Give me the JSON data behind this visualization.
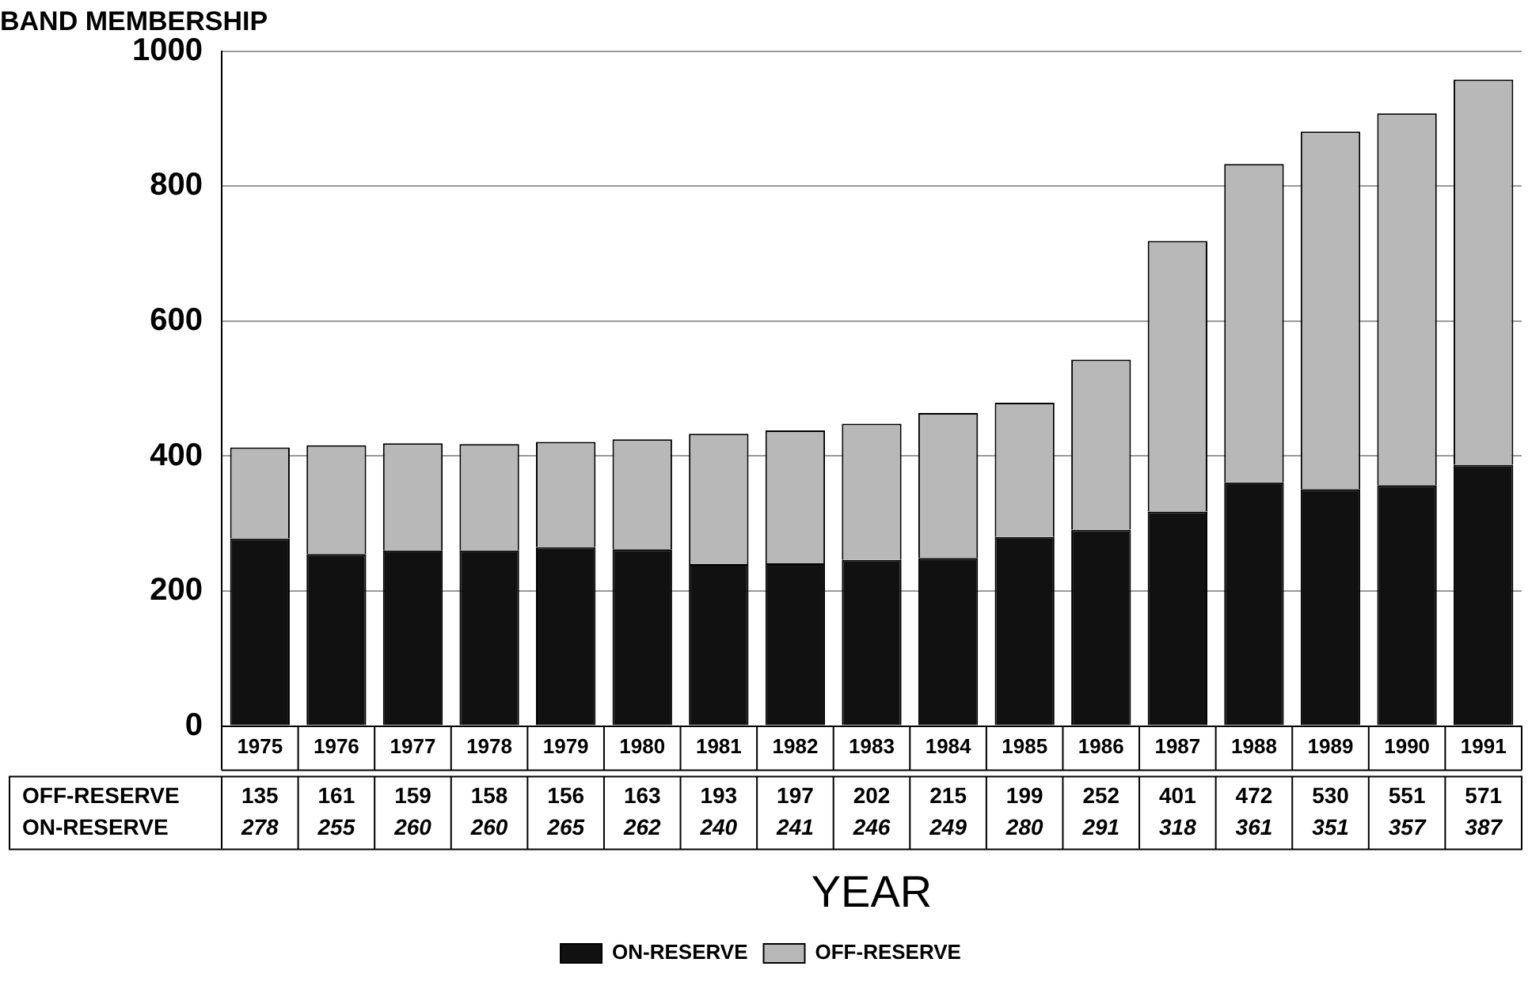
{
  "chart_data": {
    "type": "bar",
    "title": "BAND MEMBERSHIP",
    "xlabel": "YEAR",
    "stacked": true,
    "categories": [
      "1975",
      "1976",
      "1977",
      "1978",
      "1979",
      "1980",
      "1981",
      "1982",
      "1983",
      "1984",
      "1985",
      "1986",
      "1987",
      "1988",
      "1989",
      "1990",
      "1991"
    ],
    "series": [
      {
        "name": "ON-RESERVE",
        "color": "#111111",
        "values": [
          278,
          255,
          260,
          260,
          265,
          262,
          240,
          241,
          246,
          249,
          280,
          291,
          318,
          361,
          351,
          357,
          387
        ]
      },
      {
        "name": "OFF-RESERVE",
        "color": "#b8b8b8",
        "values": [
          135,
          161,
          159,
          158,
          156,
          163,
          193,
          197,
          202,
          215,
          199,
          252,
          401,
          472,
          530,
          551,
          571
        ]
      }
    ],
    "ylim": [
      0,
      1000
    ],
    "yticks": [
      0,
      200,
      400,
      600,
      800,
      1000
    ],
    "grid": "y",
    "legend": "bottom",
    "data_labels": true
  }
}
